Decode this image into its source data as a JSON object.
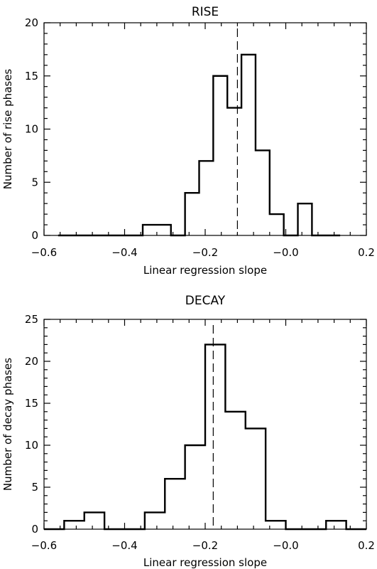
{
  "chart_data": [
    {
      "type": "histogram",
      "title": "RISE",
      "xlabel": "Linear regression slope",
      "ylabel": "Number of rise phases",
      "xlim": [
        -0.6,
        0.2
      ],
      "ylim": [
        0,
        20
      ],
      "x_ticks": [
        -0.6,
        -0.4,
        -0.2,
        0.0,
        0.2
      ],
      "x_tick_labels": [
        "−0.6",
        "−0.4",
        "−0.2",
        "−0.0",
        "0.2"
      ],
      "y_ticks": [
        0,
        5,
        10,
        15,
        20
      ],
      "y_tick_labels": [
        "0",
        "5",
        "10",
        "15",
        "20"
      ],
      "bin_width": 0.035,
      "bin_starts": [
        -0.565,
        -0.53,
        -0.495,
        -0.46,
        -0.425,
        -0.39,
        -0.355,
        -0.32,
        -0.285,
        -0.25,
        -0.215,
        -0.18,
        -0.145,
        -0.11,
        -0.075,
        -0.04,
        -0.005,
        0.03,
        0.065,
        0.1
      ],
      "counts": [
        0,
        0,
        0,
        0,
        0,
        0,
        1,
        1,
        0,
        4,
        7,
        15,
        12,
        17,
        8,
        2,
        0,
        3,
        0,
        0
      ],
      "reference_line": -0.12
    },
    {
      "type": "histogram",
      "title": "DECAY",
      "xlabel": "Linear regression slope",
      "ylabel": "Number of decay phases",
      "xlim": [
        -0.6,
        0.2
      ],
      "ylim": [
        0,
        25
      ],
      "x_ticks": [
        -0.6,
        -0.4,
        -0.2,
        0.0,
        0.2
      ],
      "x_tick_labels": [
        "−0.6",
        "−0.4",
        "−0.2",
        "−0.0",
        "0.2"
      ],
      "y_ticks": [
        0,
        5,
        10,
        15,
        20,
        25
      ],
      "y_tick_labels": [
        "0",
        "5",
        "10",
        "15",
        "20",
        "25"
      ],
      "bin_width": 0.05,
      "bin_starts": [
        -0.6,
        -0.55,
        -0.5,
        -0.45,
        -0.4,
        -0.35,
        -0.3,
        -0.25,
        -0.2,
        -0.15,
        -0.1,
        -0.05,
        0.0,
        0.05,
        0.1,
        0.15
      ],
      "counts": [
        0,
        1,
        2,
        0,
        0,
        2,
        6,
        10,
        22,
        14,
        12,
        1,
        0,
        0,
        1,
        0
      ],
      "reference_line": -0.18
    }
  ]
}
